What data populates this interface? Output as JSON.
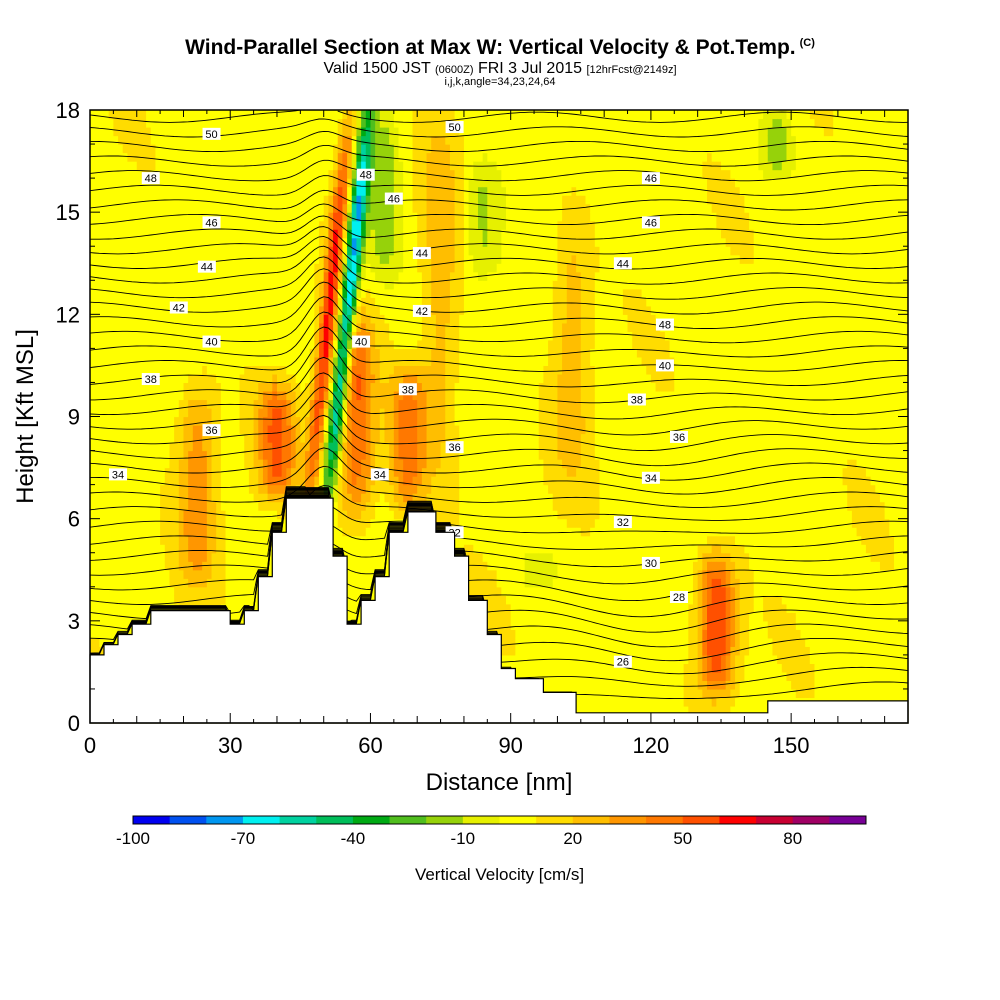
{
  "title": {
    "main": "Wind-Parallel Section at Max W: Vertical Velocity & Pot.Temp.",
    "copyright": "(C)",
    "valid_prefix": "Valid 1500 JST",
    "valid_z": "(0600Z)",
    "valid_date": "FRI 3 Jul 2015",
    "forecast": "[12hrFcst@2149z]",
    "indices": "i,j,k,angle=34,23,24,64"
  },
  "chart_data": {
    "type": "heatmap",
    "xlabel": "Distance [nm]",
    "ylabel": "Height [Kft MSL]",
    "xlim": [
      0,
      175
    ],
    "ylim": [
      0,
      18
    ],
    "x_ticks": [
      0,
      30,
      60,
      90,
      120,
      150
    ],
    "y_ticks": [
      0,
      3,
      6,
      9,
      12,
      15,
      18
    ],
    "colorbar": {
      "label": "Vertical Velocity [cm/s]",
      "tick_labels": [
        "-100",
        "-70",
        "-40",
        "-10",
        "20",
        "50",
        "80"
      ],
      "tick_values": [
        -100,
        -70,
        -40,
        -10,
        20,
        50,
        80
      ],
      "bins": [
        -100,
        -90,
        -80,
        -70,
        -60,
        -50,
        -40,
        -30,
        -20,
        -10,
        0,
        10,
        20,
        30,
        40,
        50,
        60,
        70,
        80,
        90
      ],
      "colors": [
        "#0000f0",
        "#0050f0",
        "#0096f0",
        "#00f0f0",
        "#00d2a0",
        "#00be5a",
        "#00aa14",
        "#50be1e",
        "#96d20a",
        "#e6f000",
        "#ffff00",
        "#ffdc00",
        "#ffbe00",
        "#ff9600",
        "#ff7800",
        "#ff5000",
        "#ff0000",
        "#c80032",
        "#a00064",
        "#780096"
      ]
    },
    "vertical_velocity_features": [
      {
        "kind": "updraft",
        "x_center": 47,
        "y_bottom": 6.6,
        "y_top": 18,
        "slope_nm_per_kft": 0.75,
        "peak": 55
      },
      {
        "kind": "downdraft",
        "x_center": 51,
        "y_bottom": 6.6,
        "y_top": 18,
        "slope_nm_per_kft": 0.75,
        "peak": -80
      },
      {
        "kind": "updraft",
        "x_center": 57,
        "y_bottom": 6,
        "y_top": 12,
        "peak": 45
      },
      {
        "kind": "updraft",
        "x_center": 40,
        "y_bottom": 6.6,
        "y_top": 10,
        "peak": 45
      },
      {
        "kind": "updraft",
        "x_center": 68,
        "y_bottom": 6.2,
        "y_top": 10.5,
        "peak": 40
      },
      {
        "kind": "updraft",
        "x_center": 23,
        "y_bottom": 4,
        "y_top": 10,
        "peak": 30
      },
      {
        "kind": "updraft",
        "x_center": 134,
        "y_bottom": 0.8,
        "y_top": 5,
        "peak": 55
      },
      {
        "kind": "updraft",
        "x_center": 103,
        "y_bottom": 7,
        "y_top": 15,
        "peak": 20
      },
      {
        "kind": "updraft",
        "x_center": 75,
        "y_bottom": 7,
        "y_top": 18,
        "peak": 20
      },
      {
        "kind": "downdraft",
        "x_center": 63,
        "y_bottom": 13,
        "y_top": 18,
        "peak": -25
      },
      {
        "kind": "downdraft",
        "x_center": 84,
        "y_bottom": 13,
        "y_top": 16.5,
        "peak": -18
      },
      {
        "kind": "downdraft",
        "x_center": 147,
        "y_bottom": 16,
        "y_top": 18,
        "peak": -20
      },
      {
        "kind": "downdraft",
        "x_center": 96,
        "y_bottom": 4,
        "y_top": 5,
        "peak": -15
      }
    ],
    "potential_temperature_contours": {
      "levels": [
        26,
        28,
        30,
        32,
        34,
        36,
        38,
        40,
        42,
        44,
        46,
        48,
        50
      ],
      "labels": [
        {
          "text": "50",
          "x": 26,
          "y": 17.3
        },
        {
          "text": "48",
          "x": 13,
          "y": 16.0
        },
        {
          "text": "46",
          "x": 26,
          "y": 14.7
        },
        {
          "text": "44",
          "x": 25,
          "y": 13.4
        },
        {
          "text": "42",
          "x": 19,
          "y": 12.2
        },
        {
          "text": "40",
          "x": 26,
          "y": 11.2
        },
        {
          "text": "38",
          "x": 13,
          "y": 10.1
        },
        {
          "text": "36",
          "x": 26,
          "y": 8.6
        },
        {
          "text": "34",
          "x": 6,
          "y": 7.3
        },
        {
          "text": "48",
          "x": 59,
          "y": 16.1
        },
        {
          "text": "46",
          "x": 65,
          "y": 15.4
        },
        {
          "text": "44",
          "x": 71,
          "y": 13.8
        },
        {
          "text": "42",
          "x": 71,
          "y": 12.1
        },
        {
          "text": "40",
          "x": 58,
          "y": 11.2
        },
        {
          "text": "38",
          "x": 68,
          "y": 9.8
        },
        {
          "text": "36",
          "x": 78,
          "y": 8.1
        },
        {
          "text": "34",
          "x": 62,
          "y": 7.3
        },
        {
          "text": "32",
          "x": 78,
          "y": 5.6
        },
        {
          "text": "50",
          "x": 78,
          "y": 17.5
        },
        {
          "text": "46",
          "x": 120,
          "y": 16.0
        },
        {
          "text": "46",
          "x": 120,
          "y": 14.7
        },
        {
          "text": "44",
          "x": 114,
          "y": 13.5
        },
        {
          "text": "48",
          "x": 123,
          "y": 11.7
        },
        {
          "text": "40",
          "x": 123,
          "y": 10.5
        },
        {
          "text": "38",
          "x": 117,
          "y": 9.5
        },
        {
          "text": "36",
          "x": 126,
          "y": 8.4
        },
        {
          "text": "34",
          "x": 120,
          "y": 7.2
        },
        {
          "text": "32",
          "x": 114,
          "y": 5.9
        },
        {
          "text": "30",
          "x": 120,
          "y": 4.7
        },
        {
          "text": "28",
          "x": 126,
          "y": 3.7
        },
        {
          "text": "26",
          "x": 114,
          "y": 1.8
        }
      ]
    },
    "terrain_profile": [
      [
        0,
        2.0
      ],
      [
        3,
        2.0
      ],
      [
        3,
        2.3
      ],
      [
        6,
        2.3
      ],
      [
        6,
        2.6
      ],
      [
        9,
        2.6
      ],
      [
        9,
        2.9
      ],
      [
        13,
        2.9
      ],
      [
        13,
        3.3
      ],
      [
        30,
        3.3
      ],
      [
        30,
        2.9
      ],
      [
        33,
        2.9
      ],
      [
        33,
        3.3
      ],
      [
        36,
        3.3
      ],
      [
        36,
        4.3
      ],
      [
        39,
        4.3
      ],
      [
        39,
        5.6
      ],
      [
        42,
        5.6
      ],
      [
        42,
        6.6
      ],
      [
        52,
        6.6
      ],
      [
        52,
        4.9
      ],
      [
        55,
        4.9
      ],
      [
        55,
        2.9
      ],
      [
        58,
        2.9
      ],
      [
        58,
        3.6
      ],
      [
        61,
        3.6
      ],
      [
        61,
        4.3
      ],
      [
        64,
        4.3
      ],
      [
        64,
        5.6
      ],
      [
        68,
        5.6
      ],
      [
        68,
        6.2
      ],
      [
        74,
        6.2
      ],
      [
        74,
        5.6
      ],
      [
        78,
        5.6
      ],
      [
        78,
        4.9
      ],
      [
        81,
        4.9
      ],
      [
        81,
        3.6
      ],
      [
        85,
        3.6
      ],
      [
        85,
        2.6
      ],
      [
        88,
        2.6
      ],
      [
        88,
        1.6
      ],
      [
        91,
        1.6
      ],
      [
        91,
        1.3
      ],
      [
        97,
        1.3
      ],
      [
        97,
        0.9
      ],
      [
        104,
        0.9
      ],
      [
        104,
        0.3
      ],
      [
        145,
        0.3
      ],
      [
        145,
        0.65
      ],
      [
        175,
        0.65
      ]
    ]
  }
}
